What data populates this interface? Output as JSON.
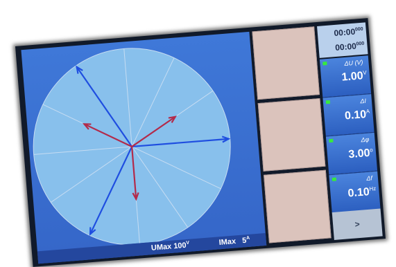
{
  "scale": {
    "umax_label": "UMax",
    "umax_value": "100",
    "umax_unit": "V",
    "imax_label": "IMax",
    "imax_value": "5",
    "imax_unit": "A"
  },
  "timers": {
    "timer1_main": "00:00",
    "timer1_ms": "000",
    "timer2_main": "00:00",
    "timer2_ms": "000"
  },
  "params": [
    {
      "label": "ΔU (V)",
      "value": "1.00",
      "unit": "V"
    },
    {
      "label": "ΔI",
      "value": "0.10",
      "unit": "A"
    },
    {
      "label": "Δφ",
      "value": "3.00",
      "unit": "o"
    },
    {
      "label": "Δf",
      "value": "0.10",
      "unit": "Hz"
    }
  ],
  "next_label": ">",
  "phasors": {
    "voltage_color": "#1f4ee0",
    "current_color": "#b32a4a",
    "voltage_angles_deg": [
      0,
      120,
      240
    ],
    "voltage_magnitude": 1.0,
    "current_angles_deg": [
      30,
      150,
      270
    ],
    "current_magnitude": 0.55
  },
  "colors": {
    "panel": "#3a6fd4",
    "circle": "#88c0ec",
    "gridline": "#c6dcf2",
    "mid_button": "#dbc3bc",
    "led": "#37ea3d"
  }
}
